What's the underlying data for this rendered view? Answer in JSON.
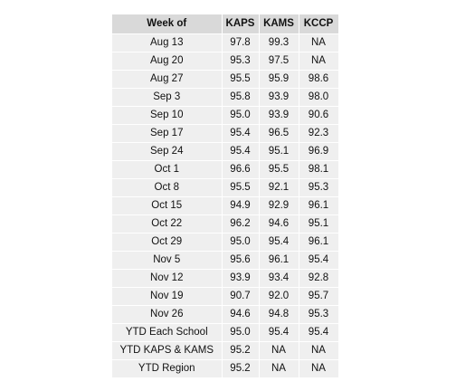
{
  "table": {
    "headers": [
      "Week of",
      "KAPS",
      "KAMS",
      "KCCP"
    ],
    "rows": [
      [
        "Aug 13",
        "97.8",
        "99.3",
        "NA"
      ],
      [
        "Aug 20",
        "95.3",
        "97.5",
        "NA"
      ],
      [
        "Aug 27",
        "95.5",
        "95.9",
        "98.6"
      ],
      [
        "Sep 3",
        "95.8",
        "93.9",
        "98.0"
      ],
      [
        "Sep 10",
        "95.0",
        "93.9",
        "90.6"
      ],
      [
        "Sep 17",
        "95.4",
        "96.5",
        "92.3"
      ],
      [
        "Sep 24",
        "95.4",
        "95.1",
        "96.9"
      ],
      [
        "Oct 1",
        "96.6",
        "95.5",
        "98.1"
      ],
      [
        "Oct 8",
        "95.5",
        "92.1",
        "95.3"
      ],
      [
        "Oct 15",
        "94.9",
        "92.9",
        "96.1"
      ],
      [
        "Oct 22",
        "96.2",
        "94.6",
        "95.1"
      ],
      [
        "Oct 29",
        "95.0",
        "95.4",
        "96.1"
      ],
      [
        "Nov 5",
        "95.6",
        "96.1",
        "95.4"
      ],
      [
        "Nov 12",
        "93.9",
        "93.4",
        "92.8"
      ],
      [
        "Nov 19",
        "90.7",
        "92.0",
        "95.7"
      ],
      [
        "Nov 26",
        "94.6",
        "94.8",
        "95.3"
      ],
      [
        "YTD Each School",
        "95.0",
        "95.4",
        "95.4"
      ],
      [
        "YTD KAPS & KAMS",
        "95.2",
        "NA",
        "NA"
      ],
      [
        "YTD Region",
        "95.2",
        "NA",
        "NA"
      ]
    ]
  },
  "colors": {
    "header_bg": "#d9d9d9",
    "cell_bg": "#efefef",
    "text": "#111111"
  }
}
